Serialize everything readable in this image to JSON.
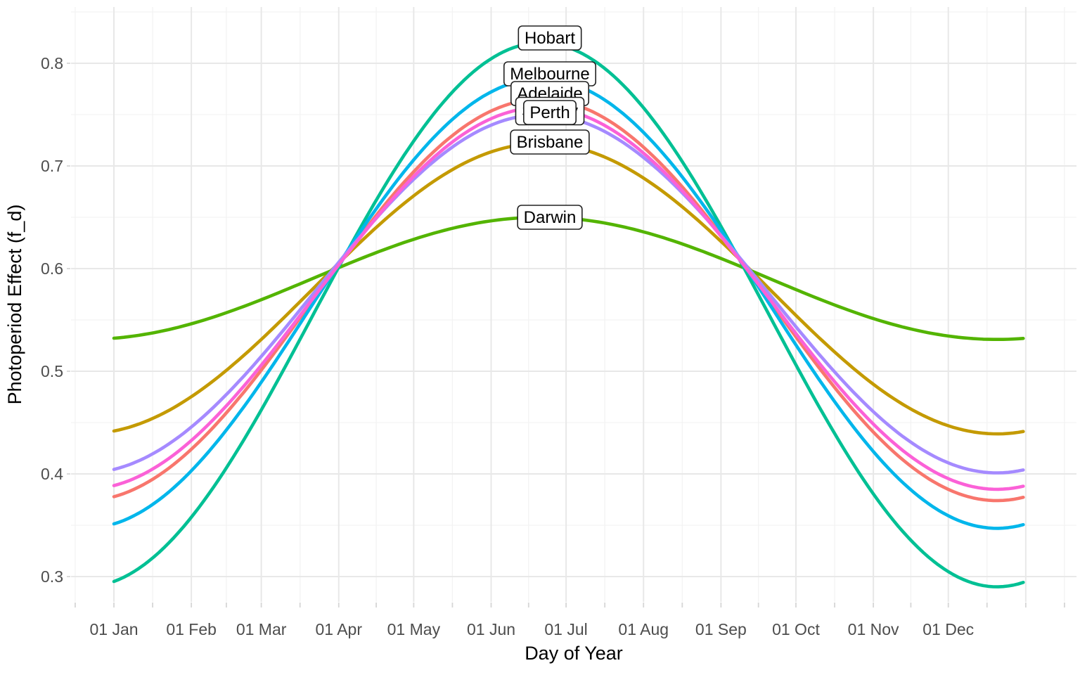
{
  "chart_data": {
    "type": "line",
    "title": "",
    "xlabel": "Day of Year",
    "ylabel": "Photoperiod Effect (f_d)",
    "x_tick_labels": [
      "01 Jan",
      "01 Feb",
      "01 Mar",
      "01 Apr",
      "01 May",
      "01 Jun",
      "01 Jul",
      "01 Aug",
      "01 Sep",
      "01 Oct",
      "01 Nov",
      "01 Dec"
    ],
    "x_tick_days": [
      1,
      32,
      60,
      91,
      121,
      152,
      182,
      213,
      244,
      274,
      305,
      335
    ],
    "y_tick_labels": [
      "0.3",
      "0.4",
      "0.5",
      "0.6",
      "0.7",
      "0.8"
    ],
    "y_tick_values": [
      0.3,
      0.4,
      0.5,
      0.6,
      0.7,
      0.8
    ],
    "y_minor_values": [
      0.35,
      0.45,
      0.55,
      0.65,
      0.75,
      0.85
    ],
    "x_range_days": [
      1,
      365
    ],
    "ylim": [
      0.276,
      0.855
    ],
    "grid": true,
    "label_placement": "inline",
    "inline_labels_visible": [
      "Hobart",
      "Melbourne",
      "Adelaide",
      "Perth",
      "Brisbane",
      "Darwin"
    ],
    "inline_label_hidden_behind_perth": "Sydney",
    "model": "value(day) = mid + amplitude * cos(2*pi*(day - peak_day)/period_days)",
    "peak_day": 172,
    "period_days": 365,
    "sample_days": [
      1,
      32,
      60,
      91,
      121,
      152,
      172,
      182,
      213,
      244,
      274,
      305,
      335,
      365
    ],
    "series": [
      {
        "name": "Adelaide",
        "color": "#F8766D",
        "mid": 0.5695,
        "amplitude": 0.1955,
        "values": [
          0.378,
          0.424,
          0.501,
          0.604,
          0.694,
          0.754,
          0.765,
          0.762,
          0.718,
          0.633,
          0.534,
          0.441,
          0.385,
          0.377
        ]
      },
      {
        "name": "Brisbane",
        "color": "#C49A00",
        "mid": 0.5805,
        "amplitude": 0.1415,
        "values": [
          0.442,
          0.475,
          0.531,
          0.605,
          0.671,
          0.714,
          0.722,
          0.72,
          0.688,
          0.627,
          0.555,
          0.487,
          0.447,
          0.441
        ]
      },
      {
        "name": "Darwin",
        "color": "#53B400",
        "mid": 0.5905,
        "amplitude": 0.0595,
        "values": [
          0.532,
          0.546,
          0.57,
          0.601,
          0.629,
          0.647,
          0.65,
          0.649,
          0.636,
          0.61,
          0.58,
          0.551,
          0.534,
          0.532
        ]
      },
      {
        "name": "Hobart",
        "color": "#00C094",
        "mid": 0.555,
        "amplitude": 0.265,
        "values": [
          0.295,
          0.358,
          0.462,
          0.602,
          0.724,
          0.804,
          0.82,
          0.816,
          0.757,
          0.641,
          0.506,
          0.381,
          0.305,
          0.294
        ]
      },
      {
        "name": "Melbourne",
        "color": "#00B6EB",
        "mid": 0.566,
        "amplitude": 0.219,
        "values": [
          0.351,
          0.403,
          0.489,
          0.604,
          0.706,
          0.772,
          0.785,
          0.782,
          0.733,
          0.637,
          0.526,
          0.422,
          0.359,
          0.351
        ]
      },
      {
        "name": "Perth",
        "color": "#A58AFF",
        "mid": 0.5755,
        "amplitude": 0.1745,
        "values": [
          0.404,
          0.446,
          0.515,
          0.606,
          0.687,
          0.74,
          0.75,
          0.747,
          0.708,
          0.632,
          0.543,
          0.461,
          0.411,
          0.404
        ]
      },
      {
        "name": "Sydney",
        "color": "#FB61D7",
        "mid": 0.571,
        "amplitude": 0.186,
        "values": [
          0.389,
          0.433,
          0.506,
          0.604,
          0.69,
          0.746,
          0.757,
          0.754,
          0.713,
          0.632,
          0.537,
          0.449,
          0.395,
          0.388
        ]
      }
    ],
    "colors": {
      "axis_text": "#4D4D4D",
      "axis_title": "#000000",
      "grid_major": "#E8E8E8",
      "grid_minor": "#F3F3F3",
      "tick_mark": "#D6D6D6",
      "label_fill": "#FFFFFF",
      "label_border": "#222222",
      "label_text": "#000000",
      "background": "#FFFFFF"
    }
  }
}
